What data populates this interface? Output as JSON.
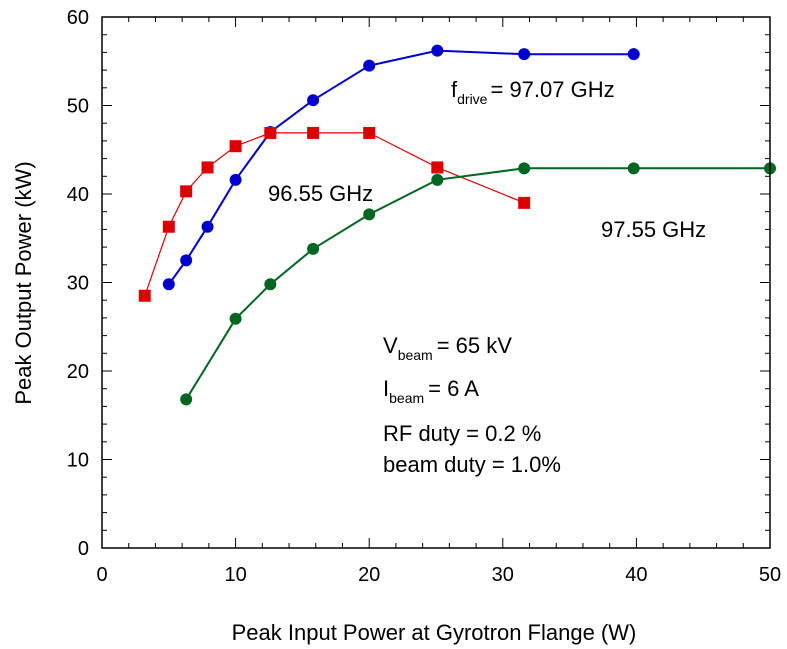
{
  "chart_data": {
    "type": "line",
    "xlabel": "Peak Input Power at Gyrotron Flange (W)",
    "ylabel": "Peak Output Power (kW)",
    "xlim": [
      0,
      50
    ],
    "ylim": [
      0,
      60
    ],
    "x_ticks": [
      "0",
      "10",
      "20",
      "30",
      "40",
      "50"
    ],
    "y_ticks": [
      "0",
      "10",
      "20",
      "30",
      "40",
      "50",
      "60"
    ],
    "grid": false,
    "series": [
      {
        "name": "97.07 GHz",
        "label_prefix": "f",
        "label_sub": "drive",
        "label_text": "= 97.07 GHz",
        "color": "#0000cc",
        "marker": "circle",
        "x": [
          5.0,
          6.3,
          7.9,
          10.0,
          12.6,
          15.8,
          20.0,
          25.1,
          31.6,
          39.8
        ],
        "y": [
          29.8,
          32.5,
          36.3,
          41.6,
          47.0,
          50.6,
          54.5,
          56.2,
          55.8,
          55.8
        ]
      },
      {
        "name": "96.55 GHz",
        "label_text": "96.55 GHz",
        "color": "#dd0000",
        "marker": "square",
        "x": [
          3.2,
          5.0,
          6.3,
          7.9,
          10.0,
          12.6,
          15.8,
          20.0,
          25.1,
          31.6
        ],
        "y": [
          28.5,
          36.3,
          40.3,
          43.0,
          45.4,
          46.9,
          46.9,
          46.9,
          43.0,
          39.0
        ]
      },
      {
        "name": "97.55 GHz",
        "label_text": "97.55 GHz",
        "color": "#006622",
        "marker": "circle",
        "x": [
          6.3,
          10.0,
          12.6,
          15.8,
          20.0,
          25.1,
          31.6,
          39.8,
          50.0
        ],
        "y": [
          16.8,
          25.9,
          29.8,
          33.8,
          37.7,
          41.6,
          42.9,
          42.9,
          42.9
        ]
      }
    ],
    "annotations": [
      {
        "main": "V",
        "sub": "beam",
        "rest": "= 65 kV"
      },
      {
        "main": "I",
        "sub": "beam",
        "rest": "= 6 A"
      },
      {
        "main": "RF duty = 0.2 %"
      },
      {
        "main": "beam duty = 1.0%"
      }
    ]
  }
}
